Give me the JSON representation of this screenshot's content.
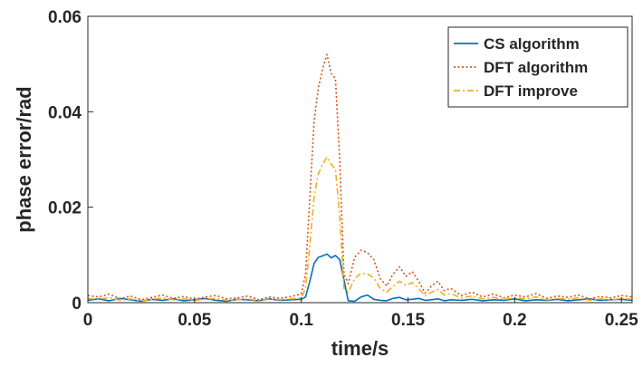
{
  "chart_data": {
    "type": "line",
    "title": "",
    "xlabel": "time/s",
    "ylabel": "phase error/rad",
    "xlim": [
      0,
      0.255
    ],
    "ylim": [
      0,
      0.06
    ],
    "xticks": [
      0,
      0.05,
      0.1,
      0.15,
      0.2,
      0.25
    ],
    "xtick_labels": [
      "0",
      "0.05",
      "0.1",
      "0.15",
      "0.2",
      "0.25"
    ],
    "yticks": [
      0,
      0.02,
      0.04,
      0.06
    ],
    "ytick_labels": [
      "0",
      "0.02",
      "0.04",
      "0.06"
    ],
    "grid": false,
    "legend_position": "top-right",
    "series": [
      {
        "name": "CS algorithm",
        "color": "#0072BD",
        "style": "solid",
        "x": [
          0,
          0.005,
          0.01,
          0.015,
          0.02,
          0.025,
          0.03,
          0.035,
          0.04,
          0.045,
          0.05,
          0.055,
          0.06,
          0.065,
          0.07,
          0.075,
          0.08,
          0.085,
          0.09,
          0.095,
          0.1,
          0.102,
          0.104,
          0.106,
          0.108,
          0.11,
          0.112,
          0.114,
          0.116,
          0.118,
          0.12,
          0.122,
          0.125,
          0.128,
          0.131,
          0.134,
          0.137,
          0.14,
          0.143,
          0.146,
          0.149,
          0.152,
          0.155,
          0.158,
          0.161,
          0.164,
          0.167,
          0.17,
          0.175,
          0.18,
          0.185,
          0.19,
          0.195,
          0.2,
          0.205,
          0.21,
          0.215,
          0.22,
          0.225,
          0.23,
          0.235,
          0.24,
          0.245,
          0.25,
          0.255
        ],
        "y": [
          0.0005,
          0.0008,
          0.0004,
          0.0009,
          0.0006,
          0.0003,
          0.0007,
          0.0005,
          0.0008,
          0.0004,
          0.0006,
          0.0009,
          0.0005,
          0.0003,
          0.0007,
          0.0006,
          0.0004,
          0.0008,
          0.0005,
          0.0006,
          0.0007,
          0.0012,
          0.0045,
          0.0082,
          0.0095,
          0.0098,
          0.0102,
          0.0094,
          0.0099,
          0.009,
          0.0048,
          0.0004,
          0.0003,
          0.0012,
          0.0016,
          0.0007,
          0.0005,
          0.0004,
          0.0009,
          0.0011,
          0.0006,
          0.0007,
          0.0009,
          0.0005,
          0.0006,
          0.0008,
          0.0004,
          0.0006,
          0.0005,
          0.0007,
          0.0004,
          0.0006,
          0.0005,
          0.0008,
          0.0004,
          0.0006,
          0.0005,
          0.0007,
          0.0004,
          0.0006,
          0.0008,
          0.0005,
          0.0006,
          0.0007,
          0.0005
        ]
      },
      {
        "name": "DFT algorithm",
        "color": "#D95319",
        "style": "dotted",
        "x": [
          0,
          0.005,
          0.01,
          0.015,
          0.02,
          0.025,
          0.03,
          0.035,
          0.04,
          0.045,
          0.05,
          0.055,
          0.06,
          0.065,
          0.07,
          0.075,
          0.08,
          0.085,
          0.09,
          0.095,
          0.1,
          0.102,
          0.104,
          0.106,
          0.108,
          0.11,
          0.112,
          0.114,
          0.116,
          0.118,
          0.12,
          0.122,
          0.125,
          0.128,
          0.131,
          0.134,
          0.137,
          0.14,
          0.143,
          0.146,
          0.149,
          0.152,
          0.155,
          0.158,
          0.161,
          0.164,
          0.167,
          0.17,
          0.175,
          0.18,
          0.185,
          0.19,
          0.195,
          0.2,
          0.205,
          0.21,
          0.215,
          0.22,
          0.225,
          0.23,
          0.235,
          0.24,
          0.245,
          0.25,
          0.255
        ],
        "y": [
          0.0015,
          0.0012,
          0.0018,
          0.0008,
          0.0014,
          0.0006,
          0.0011,
          0.0016,
          0.0009,
          0.0013,
          0.0007,
          0.0012,
          0.0015,
          0.0008,
          0.001,
          0.0014,
          0.0006,
          0.0012,
          0.0009,
          0.0013,
          0.0018,
          0.006,
          0.022,
          0.038,
          0.045,
          0.049,
          0.052,
          0.048,
          0.047,
          0.03,
          0.006,
          0.004,
          0.0095,
          0.011,
          0.0105,
          0.009,
          0.005,
          0.0035,
          0.006,
          0.0075,
          0.0055,
          0.0065,
          0.0045,
          0.002,
          0.0035,
          0.0045,
          0.0025,
          0.003,
          0.0015,
          0.0022,
          0.0012,
          0.0018,
          0.001,
          0.0016,
          0.0012,
          0.0019,
          0.0009,
          0.0014,
          0.0011,
          0.0016,
          0.0008,
          0.0013,
          0.001,
          0.0015,
          0.0012
        ]
      },
      {
        "name": "DFT improve",
        "color": "#EDB120",
        "style": "dashdot",
        "x": [
          0,
          0.005,
          0.01,
          0.015,
          0.02,
          0.025,
          0.03,
          0.035,
          0.04,
          0.045,
          0.05,
          0.055,
          0.06,
          0.065,
          0.07,
          0.075,
          0.08,
          0.085,
          0.09,
          0.095,
          0.1,
          0.102,
          0.104,
          0.106,
          0.108,
          0.11,
          0.112,
          0.114,
          0.116,
          0.118,
          0.12,
          0.122,
          0.125,
          0.128,
          0.131,
          0.134,
          0.137,
          0.14,
          0.143,
          0.146,
          0.149,
          0.152,
          0.155,
          0.158,
          0.161,
          0.164,
          0.167,
          0.17,
          0.175,
          0.18,
          0.185,
          0.19,
          0.195,
          0.2,
          0.205,
          0.21,
          0.215,
          0.22,
          0.225,
          0.23,
          0.235,
          0.24,
          0.245,
          0.25,
          0.255
        ],
        "y": [
          0.0009,
          0.0007,
          0.0011,
          0.0005,
          0.0008,
          0.0004,
          0.0007,
          0.001,
          0.0006,
          0.0008,
          0.0005,
          0.0007,
          0.0009,
          0.0005,
          0.0006,
          0.0008,
          0.0004,
          0.0007,
          0.0006,
          0.0008,
          0.001,
          0.003,
          0.012,
          0.022,
          0.027,
          0.029,
          0.0305,
          0.029,
          0.028,
          0.018,
          0.003,
          0.0022,
          0.005,
          0.0062,
          0.006,
          0.0052,
          0.003,
          0.0022,
          0.0034,
          0.0045,
          0.0036,
          0.0042,
          0.003,
          0.0014,
          0.0022,
          0.0028,
          0.0016,
          0.0019,
          0.001,
          0.0014,
          0.0008,
          0.0011,
          0.0007,
          0.001,
          0.0008,
          0.0012,
          0.0006,
          0.0009,
          0.0007,
          0.001,
          0.0005,
          0.0008,
          0.0006,
          0.0009,
          0.0007
        ]
      }
    ]
  }
}
